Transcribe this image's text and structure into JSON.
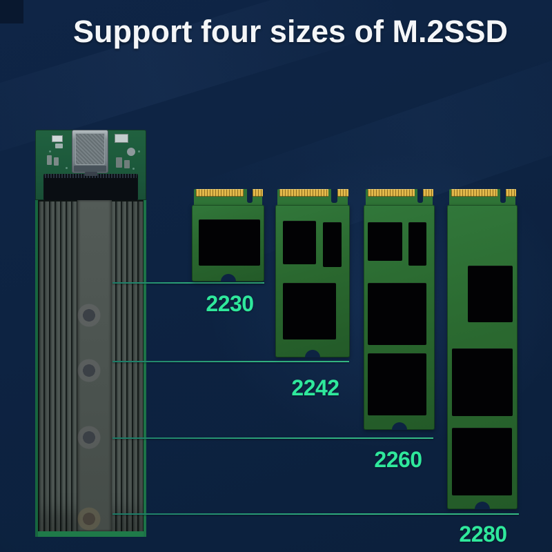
{
  "title": "Support four sizes of M.2SSD",
  "sizes": [
    "2230",
    "2242",
    "2260",
    "2280"
  ],
  "colors": {
    "background_navy": "#0d2342",
    "accent_green": "#2fe89c",
    "leader_line_teal": "#2fae7e",
    "pcb_green": "#2d7034",
    "gold_connector": "#e2b84b",
    "chip_black": "#020204",
    "title_white": "#f4f6f8"
  }
}
